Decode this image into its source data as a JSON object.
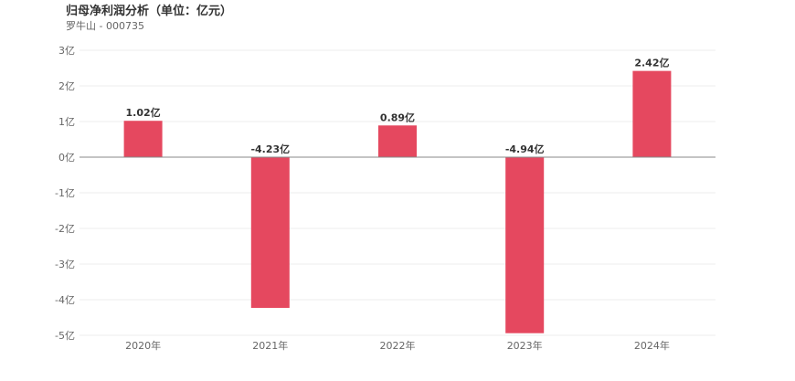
{
  "header": {
    "title": "归母净利润分析（单位：亿元）",
    "subtitle": "罗牛山 - 000735"
  },
  "colors": {
    "bar": "#e5485f",
    "grid": "#eeeeee",
    "zero_line": "#888888"
  },
  "chart_data": {
    "type": "bar",
    "title": "归母净利润分析（单位：亿元）",
    "subtitle": "罗牛山 - 000735",
    "categories": [
      "2020年",
      "2021年",
      "2022年",
      "2023年",
      "2024年"
    ],
    "values": [
      1.02,
      -4.23,
      0.89,
      -4.94,
      2.42
    ],
    "data_labels": [
      "1.02亿",
      "-4.23亿",
      "0.89亿",
      "-4.94亿",
      "2.42亿"
    ],
    "y_ticks": [
      3,
      2,
      1,
      0,
      -1,
      -2,
      -3,
      -4,
      -5
    ],
    "y_tick_labels": [
      "3亿",
      "2亿",
      "1亿",
      "0亿",
      "-1亿",
      "-2亿",
      "-3亿",
      "-4亿",
      "-5亿"
    ],
    "ylim": [
      -5,
      3
    ],
    "grid": true,
    "legend": "none",
    "xlabel": "",
    "ylabel": ""
  }
}
